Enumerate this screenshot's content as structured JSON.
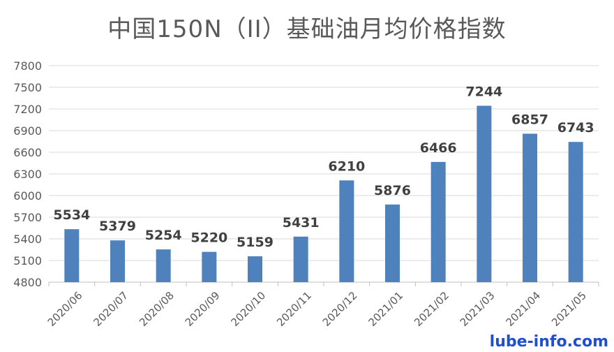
{
  "chart_data": {
    "type": "bar",
    "title": "中国150N（II）基础油月均价格指数",
    "categories": [
      "2020/06",
      "2020/07",
      "2020/08",
      "2020/09",
      "2020/10",
      "2020/11",
      "2020/12",
      "2021/01",
      "2021/02",
      "2021/03",
      "2021/04",
      "2021/05"
    ],
    "values": [
      5534,
      5379,
      5254,
      5220,
      5159,
      5431,
      6210,
      5876,
      6466,
      7244,
      6857,
      6743
    ],
    "ylim": [
      4800,
      7800
    ],
    "yticks": [
      4800,
      5100,
      5400,
      5700,
      6000,
      6300,
      6600,
      6900,
      7200,
      7500,
      7800
    ],
    "xlabel": "",
    "ylabel": "",
    "grid": true,
    "bar_color": "#4f81bd",
    "grid_color": "#d9d9d9",
    "label_color": "#404040"
  },
  "watermark": "lube-info.com"
}
